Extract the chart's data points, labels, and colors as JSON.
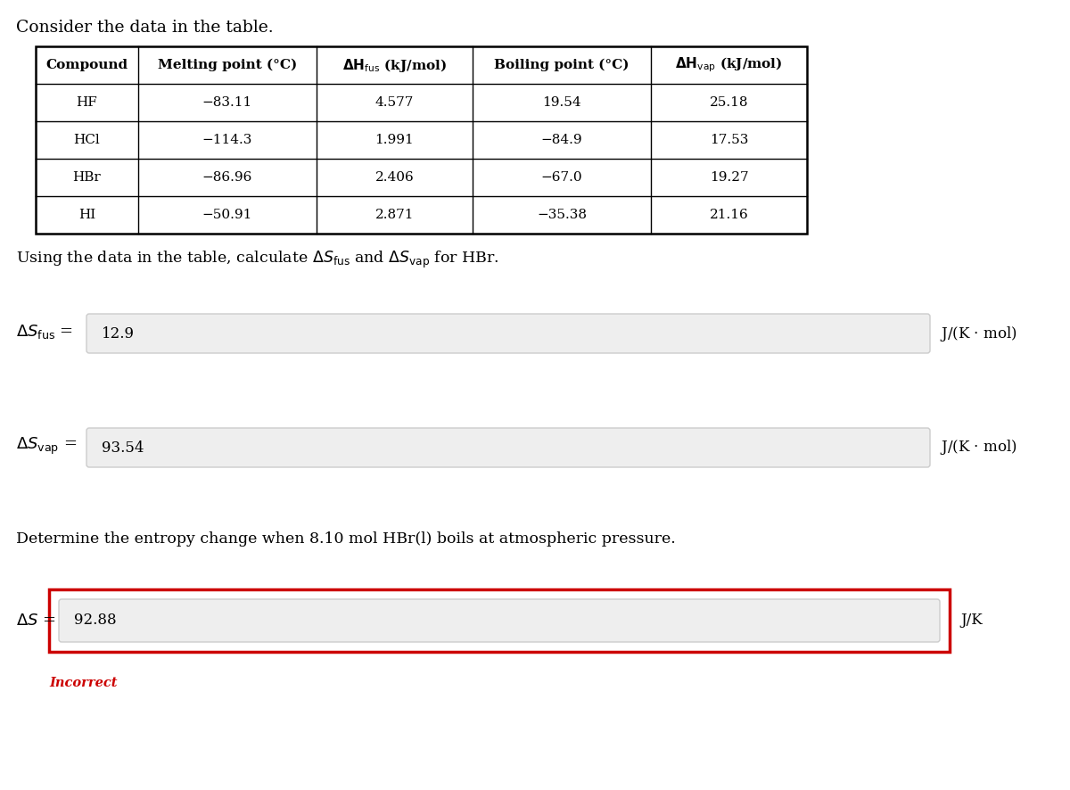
{
  "title": "Consider the data in the table.",
  "table_data": [
    [
      "HF",
      "−83.11",
      "4.577",
      "19.54",
      "25.18"
    ],
    [
      "HCl",
      "−114.3",
      "1.991",
      "−84.9",
      "17.53"
    ],
    [
      "HBr",
      "−86.96",
      "2.406",
      "−67.0",
      "19.27"
    ],
    [
      "HI",
      "−50.91",
      "2.871",
      "−35.38",
      "21.16"
    ]
  ],
  "question1": "Using the data in the table, calculate $\\Delta S_{\\mathrm{fus}}$ and $\\Delta S_{\\mathrm{vap}}$ for HBr.",
  "value_fus": "12.9",
  "unit_fus": "J/(K $\\cdot$ mol)",
  "value_vap": "93.54",
  "unit_vap": "J/(K $\\cdot$ mol)",
  "question2": "Determine the entropy change when 8.10 mol HBr(l) boils at atmospheric pressure.",
  "value_delta_s": "92.88",
  "unit_delta_s": "J/K",
  "incorrect_text": "Incorrect",
  "bg_color": "#ffffff",
  "input_box_color": "#eeeeee",
  "table_border_color": "#000000",
  "incorrect_color": "#cc0000",
  "red_border_color": "#cc0000"
}
